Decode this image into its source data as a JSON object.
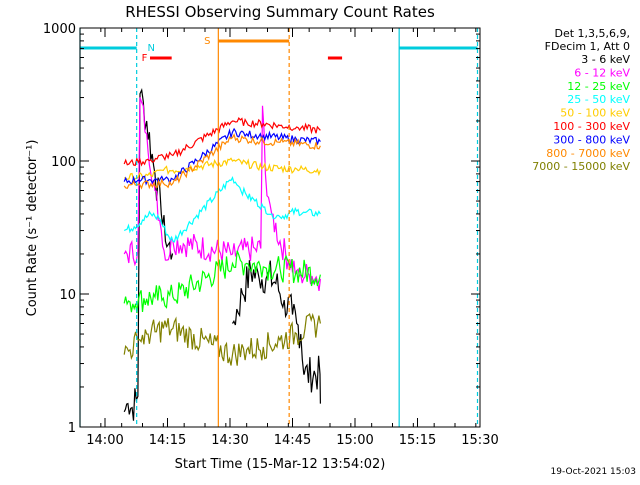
{
  "chart_data": {
    "type": "line",
    "title": "RHESSI Observing Summary Count Rates",
    "xlabel": "Start Time (15-Mar-12 13:54:02)",
    "ylabel": "Count Rate (s⁻¹ detector⁻¹)",
    "yscale": "log",
    "ylim": [
      1,
      1000
    ],
    "xlim_minutes": [
      0,
      96
    ],
    "x_ticks": [
      {
        "label": "14:00",
        "minute": 6
      },
      {
        "label": "14:15",
        "minute": 21
      },
      {
        "label": "14:30",
        "minute": 36
      },
      {
        "label": "14:45",
        "minute": 51
      },
      {
        "label": "15:00",
        "minute": 66
      },
      {
        "label": "15:15",
        "minute": 81
      },
      {
        "label": "15:30",
        "minute": 96
      }
    ],
    "y_ticks": [
      {
        "label": "1",
        "value": 1
      },
      {
        "label": "10",
        "value": 10
      },
      {
        "label": "100",
        "value": 100
      },
      {
        "label": "1000",
        "value": 1000
      }
    ],
    "legend_header": [
      "Det 1,3,5,6,9,",
      "FDecim 1, Att 0"
    ],
    "legend_position": "right",
    "series": [
      {
        "name": "3 - 6 keV",
        "color": "#000000",
        "x": [
          10.6,
          11.5,
          12.5,
          13.5,
          13.9,
          14.4,
          16,
          18,
          19.5,
          20.5,
          22.2,
          22.3,
          36.5,
          36.6,
          39,
          41,
          43,
          45,
          47,
          49,
          51,
          52,
          53,
          53.7,
          53.8,
          57.6,
          57.7
        ],
        "y": [
          1.3,
          1.5,
          1.4,
          1.6,
          1.7,
          320,
          200,
          80,
          40,
          25,
          20,
          20,
          null,
          6,
          10,
          15,
          13,
          14,
          12,
          9,
          7,
          6,
          5,
          2.5,
          2.5,
          2.5,
          1.5
        ]
      },
      {
        "name": "6 - 12 keV",
        "color": "#ff00ff",
        "x": [
          10.6,
          13.9,
          14.4,
          16,
          18,
          19.5,
          20.5,
          22.3,
          36.6,
          42,
          43.4,
          43.8,
          44.5,
          46,
          48,
          50,
          52,
          53,
          55,
          57.7
        ],
        "y": [
          20,
          21,
          300,
          160,
          60,
          30,
          18,
          25,
          20,
          22,
          22,
          260,
          80,
          40,
          25,
          18,
          15,
          14,
          14,
          13
        ]
      },
      {
        "name": "12 - 25 keV",
        "color": "#00ff00",
        "x": [
          10.6,
          12,
          14,
          16,
          18,
          20,
          22.3,
          36.6,
          40,
          44,
          48,
          52,
          57.7
        ],
        "y": [
          8.5,
          8.7,
          9,
          9.2,
          9.5,
          9.3,
          9.5,
          17,
          17,
          16,
          15.5,
          15,
          14
        ]
      },
      {
        "name": "25 - 50 keV",
        "color": "#00ffff",
        "x": [
          10.6,
          13,
          15,
          17,
          19,
          21,
          22.3,
          36.6,
          38,
          40,
          42,
          44,
          46,
          48,
          50,
          52,
          54,
          57.7
        ],
        "y": [
          30,
          32,
          36,
          40,
          37,
          28,
          25,
          75,
          65,
          55,
          50,
          45,
          40,
          38,
          40,
          42,
          41,
          40
        ]
      },
      {
        "name": "50 - 100 keV",
        "color": "#ffcc00",
        "x": [
          10.6,
          14,
          17,
          20,
          22.3,
          36.6,
          40,
          44,
          48,
          52,
          57.7
        ],
        "y": [
          75,
          76,
          78,
          85,
          85,
          100,
          95,
          90,
          88,
          87,
          85
        ]
      },
      {
        "name": "100 - 300 keV",
        "color": "#ff0000",
        "x": [
          10.6,
          14,
          17,
          20,
          22.3,
          36.6,
          40,
          44,
          48,
          52,
          57.7
        ],
        "y": [
          95,
          98,
          102,
          108,
          110,
          200,
          195,
          190,
          185,
          180,
          170
        ]
      },
      {
        "name": "300 - 800 keV",
        "color": "#0000ff",
        "x": [
          10.6,
          14,
          17,
          20,
          22.3,
          36.6,
          40,
          44,
          48,
          52,
          57.7
        ],
        "y": [
          70,
          72,
          72,
          72,
          73,
          165,
          160,
          155,
          150,
          145,
          140
        ]
      },
      {
        "name": "800 - 7000 keV",
        "color": "#ff8800",
        "x": [
          10.6,
          14,
          17,
          20,
          22.3,
          36.6,
          40,
          44,
          48,
          52,
          57.7
        ],
        "y": [
          65,
          67,
          67,
          68,
          68,
          150,
          145,
          140,
          138,
          135,
          130
        ]
      },
      {
        "name": "7000 - 15000 keV",
        "color": "#808000",
        "x": [
          10.6,
          12,
          14,
          16,
          18,
          20,
          22.3,
          36.6,
          40,
          44,
          48,
          52,
          54,
          57.7
        ],
        "y": [
          3.5,
          3.8,
          4.5,
          5,
          5.2,
          5.5,
          5.5,
          3.5,
          3.8,
          4,
          4.5,
          5,
          5.5,
          6
        ]
      }
    ],
    "annotations": [
      {
        "label": "N",
        "color": "#00ccdd"
      },
      {
        "label": "F",
        "color": "#ff0000"
      },
      {
        "label": "S",
        "color": "#ff8800"
      }
    ]
  },
  "footer_date": "19-Oct-2021 15:03"
}
